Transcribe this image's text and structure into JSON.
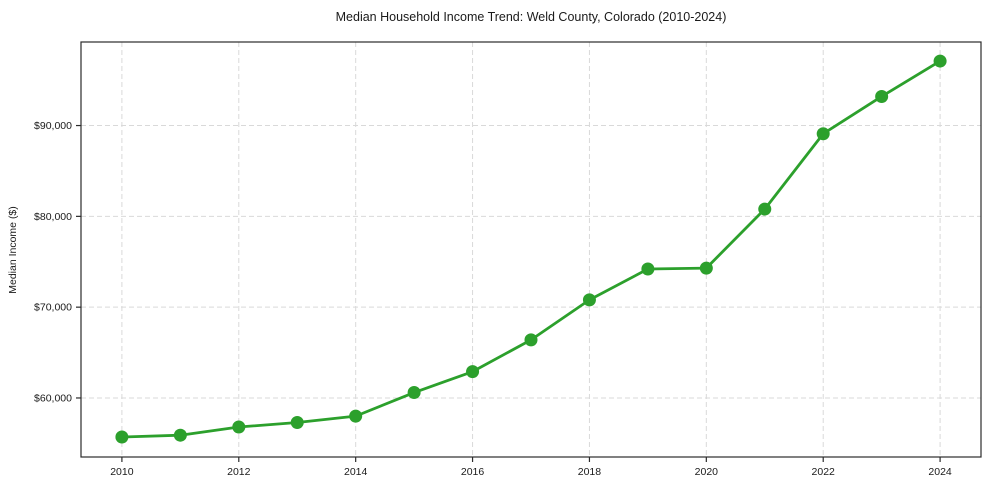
{
  "chart_data": {
    "type": "line",
    "title": "Median Household Income Trend: Weld County, Colorado (2010-2024)",
    "xlabel": "",
    "ylabel": "Median Income ($)",
    "series_name": "Median Household Income",
    "x": [
      2010,
      2011,
      2012,
      2013,
      2014,
      2015,
      2016,
      2017,
      2018,
      2019,
      2020,
      2021,
      2022,
      2023,
      2024
    ],
    "values": [
      55700,
      55900,
      56800,
      57300,
      58000,
      60600,
      62900,
      66400,
      70800,
      74200,
      74300,
      80800,
      89100,
      93200,
      97100
    ],
    "xticks": [
      2010,
      2012,
      2014,
      2016,
      2018,
      2020,
      2022,
      2024
    ],
    "xtick_labels": [
      "2010",
      "2012",
      "2014",
      "2016",
      "2018",
      "2020",
      "2022",
      "2024"
    ],
    "yticks": [
      60000,
      70000,
      80000,
      90000
    ],
    "ytick_labels": [
      "$60,000",
      "$70,000",
      "$80,000",
      "$90,000"
    ],
    "xlim": [
      2009.3,
      2024.7
    ],
    "ylim": [
      53500,
      99200
    ],
    "grid": true,
    "grid_style": "dashed",
    "legend": "none",
    "colors": {
      "line": "#2ca02c",
      "marker": "#2ca02c",
      "grid": "#d9d9d9",
      "axis_border": "#2b2b2b",
      "text": "#1a1a1a",
      "background": "#ffffff"
    }
  }
}
